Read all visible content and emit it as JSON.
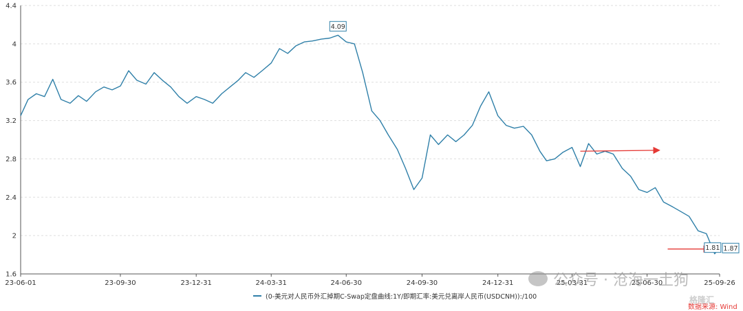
{
  "chart_data": {
    "type": "line",
    "title": "",
    "xlabel": "",
    "ylabel": "",
    "ylim": [
      1.6,
      4.4
    ],
    "yticks": [
      "1.6",
      "2",
      "2.4",
      "2.8",
      "3.2",
      "3.6",
      "4",
      "4.4"
    ],
    "xticks": [
      "23-06-01",
      "23-09-30",
      "23-12-31",
      "24-03-31",
      "24-06-30",
      "24-09-30",
      "24-12-31",
      "25-03-31",
      "25-06-30",
      "25-09-26"
    ],
    "grid": true,
    "legend_position": "bottom-center",
    "series": [
      {
        "name": "(0-美元对人民币外汇掉期C-Swap定盘曲线:1Y/即期汇率:美元兑离岸人民币(USDCNH)):/100",
        "color": "#2e7fa8",
        "points": [
          [
            "23-06-01",
            3.25
          ],
          [
            "23-06-10",
            3.42
          ],
          [
            "23-06-20",
            3.48
          ],
          [
            "23-06-30",
            3.45
          ],
          [
            "23-07-10",
            3.63
          ],
          [
            "23-07-20",
            3.42
          ],
          [
            "23-07-31",
            3.38
          ],
          [
            "23-08-10",
            3.46
          ],
          [
            "23-08-20",
            3.4
          ],
          [
            "23-08-31",
            3.5
          ],
          [
            "23-09-10",
            3.55
          ],
          [
            "23-09-20",
            3.52
          ],
          [
            "23-09-30",
            3.56
          ],
          [
            "23-10-10",
            3.72
          ],
          [
            "23-10-20",
            3.62
          ],
          [
            "23-10-31",
            3.58
          ],
          [
            "23-11-10",
            3.7
          ],
          [
            "23-11-20",
            3.62
          ],
          [
            "23-11-30",
            3.55
          ],
          [
            "23-12-10",
            3.45
          ],
          [
            "23-12-20",
            3.38
          ],
          [
            "23-12-31",
            3.45
          ],
          [
            "24-01-10",
            3.42
          ],
          [
            "24-01-20",
            3.38
          ],
          [
            "24-01-31",
            3.48
          ],
          [
            "24-02-10",
            3.55
          ],
          [
            "24-02-20",
            3.62
          ],
          [
            "24-02-29",
            3.7
          ],
          [
            "24-03-10",
            3.65
          ],
          [
            "24-03-20",
            3.72
          ],
          [
            "24-03-31",
            3.8
          ],
          [
            "24-04-10",
            3.95
          ],
          [
            "24-04-20",
            3.9
          ],
          [
            "24-04-30",
            3.98
          ],
          [
            "24-05-10",
            4.02
          ],
          [
            "24-05-20",
            4.03
          ],
          [
            "24-05-31",
            4.05
          ],
          [
            "24-06-10",
            4.06
          ],
          [
            "24-06-20",
            4.09
          ],
          [
            "24-06-30",
            4.02
          ],
          [
            "24-07-10",
            4.0
          ],
          [
            "24-07-20",
            3.7
          ],
          [
            "24-07-31",
            3.3
          ],
          [
            "24-08-10",
            3.2
          ],
          [
            "24-08-20",
            3.05
          ],
          [
            "24-08-31",
            2.9
          ],
          [
            "24-09-10",
            2.7
          ],
          [
            "24-09-20",
            2.48
          ],
          [
            "24-09-30",
            2.6
          ],
          [
            "24-10-10",
            3.05
          ],
          [
            "24-10-20",
            2.95
          ],
          [
            "24-10-31",
            3.05
          ],
          [
            "24-11-10",
            2.98
          ],
          [
            "24-11-20",
            3.05
          ],
          [
            "24-11-30",
            3.15
          ],
          [
            "24-12-10",
            3.35
          ],
          [
            "24-12-20",
            3.5
          ],
          [
            "24-12-31",
            3.25
          ],
          [
            "25-01-10",
            3.15
          ],
          [
            "25-01-20",
            3.12
          ],
          [
            "25-01-31",
            3.14
          ],
          [
            "25-02-10",
            3.05
          ],
          [
            "25-02-20",
            2.88
          ],
          [
            "25-02-28",
            2.78
          ],
          [
            "25-03-10",
            2.8
          ],
          [
            "25-03-20",
            2.87
          ],
          [
            "25-03-31",
            2.92
          ],
          [
            "25-04-10",
            2.72
          ],
          [
            "25-04-20",
            2.96
          ],
          [
            "25-04-30",
            2.85
          ],
          [
            "25-05-10",
            2.88
          ],
          [
            "25-05-20",
            2.85
          ],
          [
            "25-05-31",
            2.7
          ],
          [
            "25-06-10",
            2.62
          ],
          [
            "25-06-20",
            2.48
          ],
          [
            "25-06-30",
            2.45
          ],
          [
            "25-07-10",
            2.5
          ],
          [
            "25-07-20",
            2.35
          ],
          [
            "25-07-31",
            2.3
          ],
          [
            "25-08-10",
            2.25
          ],
          [
            "25-08-20",
            2.2
          ],
          [
            "25-08-31",
            2.05
          ],
          [
            "25-09-10",
            2.02
          ],
          [
            "25-09-20",
            1.81
          ],
          [
            "25-09-26",
            1.87
          ]
        ]
      }
    ],
    "annotations": [
      {
        "label": "4.09",
        "x": "24-06-20",
        "y": 4.09
      },
      {
        "label": "1.81",
        "x": "25-09-20",
        "y": 1.81
      },
      {
        "label": "1.87",
        "x": "25-09-26",
        "y": 1.87
      }
    ],
    "arrows": [
      {
        "from": [
          "25-04-10",
          2.88
        ],
        "to": [
          "25-07-15",
          2.89
        ],
        "color": "#e53935"
      },
      {
        "from": [
          "25-07-25",
          1.86
        ],
        "to": [
          "25-09-14",
          1.86
        ],
        "color": "#e53935"
      }
    ]
  },
  "source_note": "数据来源: Wind",
  "watermark": "公众号 · 沧海一土狗",
  "logo_text": "格隆汇"
}
